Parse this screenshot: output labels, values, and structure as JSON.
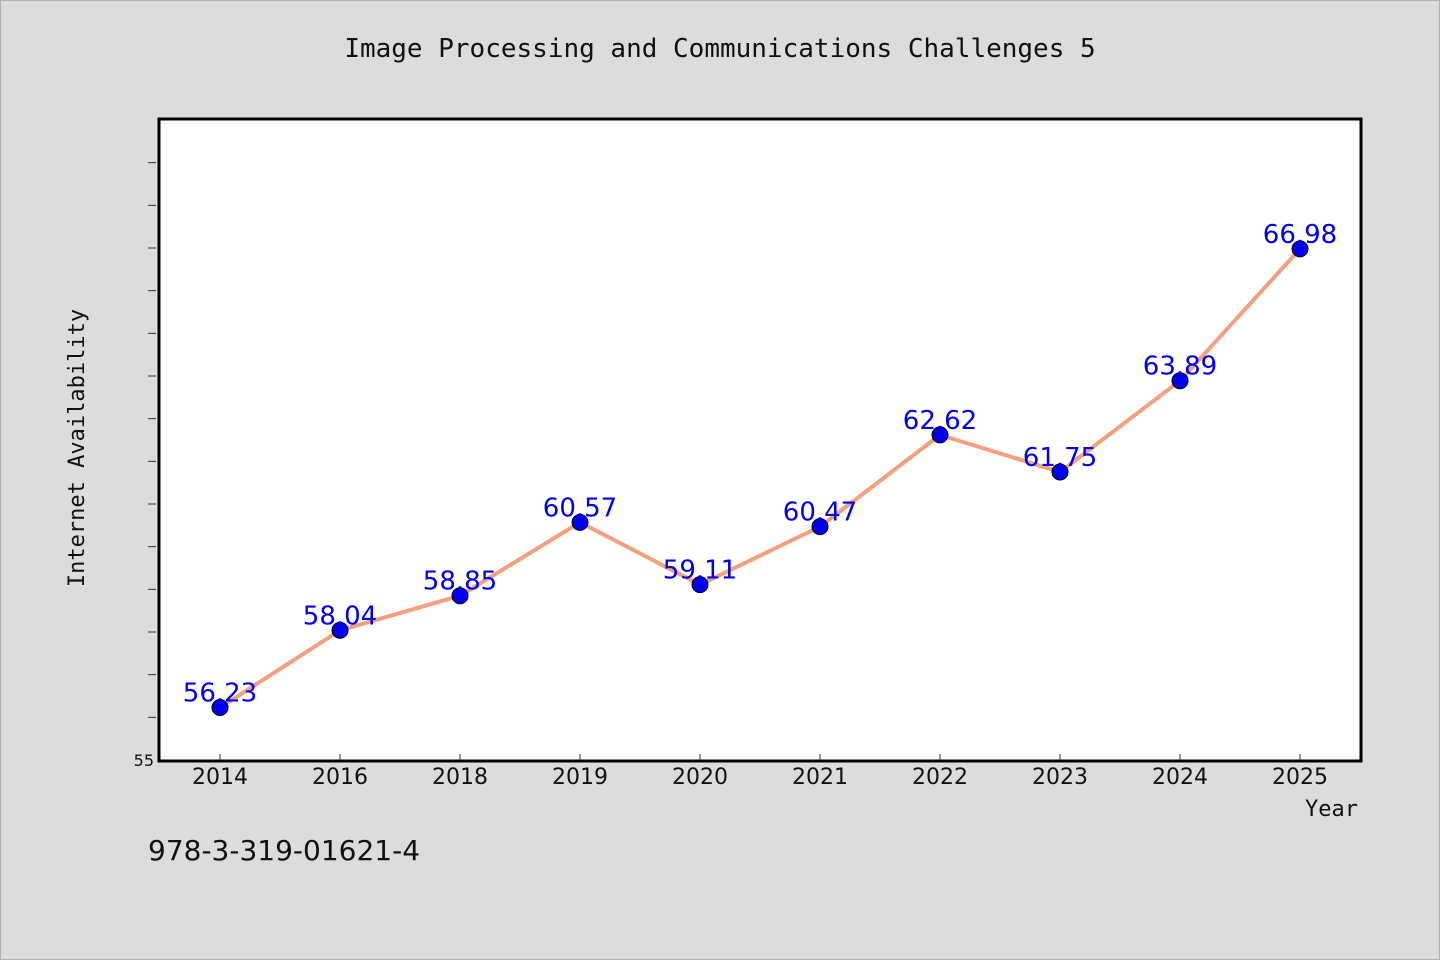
{
  "chart_data": {
    "type": "line",
    "title": "Image Processing and Communications Challenges 5",
    "xlabel": "Year",
    "ylabel": "Internet Availability",
    "categories": [
      "2014",
      "2016",
      "2018",
      "2019",
      "2020",
      "2021",
      "2022",
      "2023",
      "2024",
      "2025"
    ],
    "series": [
      {
        "values": [
          56.23,
          58.04,
          58.85,
          60.57,
          59.11,
          60.47,
          62.62,
          61.75,
          63.89,
          66.98
        ],
        "data_labels": [
          "56.23",
          "58.04",
          "58.85",
          "60.57",
          "59.11",
          "60.47",
          "62.62",
          "61.75",
          "63.89",
          "66.98"
        ]
      }
    ],
    "ylim": [
      55,
      70
    ],
    "y_tick_labels": [
      "55"
    ],
    "grid": false,
    "colors": {
      "line": "#f4a07e",
      "marker": "#0000ee",
      "label": "#0000ee",
      "plot_background": "#ffffff",
      "page_background": "#dcdcdc"
    }
  },
  "footer": {
    "isbn": "978-3-319-01621-4"
  }
}
